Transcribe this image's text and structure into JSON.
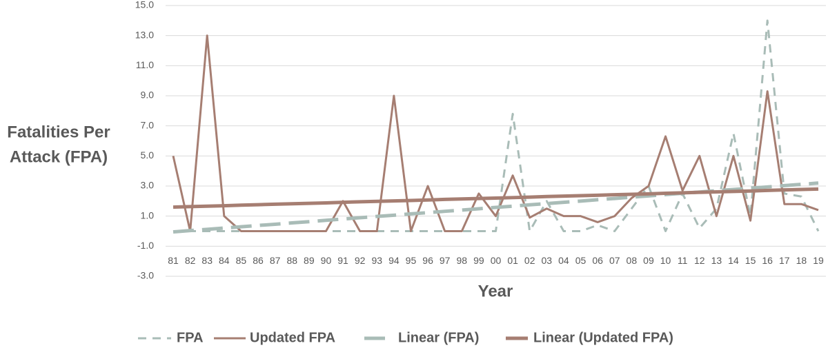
{
  "chart_data": {
    "type": "line",
    "ylabel": [
      "Fatalities Per",
      "Attack (FPA)"
    ],
    "xlabel": "Year",
    "categories": [
      "81",
      "82",
      "83",
      "84",
      "85",
      "86",
      "87",
      "88",
      "89",
      "90",
      "91",
      "92",
      "93",
      "94",
      "95",
      "96",
      "97",
      "98",
      "99",
      "00",
      "01",
      "02",
      "03",
      "04",
      "05",
      "06",
      "07",
      "08",
      "09",
      "10",
      "11",
      "12",
      "13",
      "14",
      "15",
      "16",
      "17",
      "18",
      "19"
    ],
    "ylim": [
      -3,
      15
    ],
    "yticks": [
      {
        "value": -3,
        "label": "-3.0"
      },
      {
        "value": -1,
        "label": "-1.0"
      },
      {
        "value": 1,
        "label": "1.0"
      },
      {
        "value": 3,
        "label": "3.0"
      },
      {
        "value": 5,
        "label": "5.0"
      },
      {
        "value": 7,
        "label": "7.0"
      },
      {
        "value": 9,
        "label": "9.0"
      },
      {
        "value": 11,
        "label": "11.0"
      },
      {
        "value": 13,
        "label": "13.0"
      },
      {
        "value": 15,
        "label": "15.0"
      }
    ],
    "grid": true,
    "legend": "bottom",
    "series": [
      {
        "name": "FPA",
        "color": "#a9bcb7",
        "width": 3,
        "dash": "12 9",
        "values": [
          0,
          0,
          0,
          0,
          0,
          0,
          0,
          0,
          0,
          0,
          0,
          0,
          0,
          0,
          0,
          0,
          0,
          0,
          0,
          0,
          7.8,
          0,
          2,
          0,
          0,
          0.4,
          0,
          1.5,
          3,
          0,
          2.5,
          0.2,
          1.5,
          6.5,
          1,
          14,
          2.5,
          2.3,
          0
        ]
      },
      {
        "name": "Updated FPA",
        "color": "#a67e72",
        "width": 3,
        "dash": "",
        "values": [
          5,
          0,
          13,
          1,
          0,
          0,
          0,
          0,
          0,
          0,
          2,
          0,
          0,
          9,
          0,
          3,
          0,
          0,
          2.5,
          1,
          3.7,
          0.9,
          1.5,
          1,
          1,
          0.6,
          1,
          2.2,
          3,
          6.3,
          2.7,
          5,
          1,
          5,
          0.7,
          9.3,
          1.8,
          1.8,
          1.4
        ]
      },
      {
        "name": "Linear (FPA)",
        "color": "#a9bcb7",
        "width": 5,
        "dash": "30 12",
        "values": [
          -0.05,
          0.04,
          0.12,
          0.21,
          0.29,
          0.38,
          0.46,
          0.55,
          0.63,
          0.72,
          0.81,
          0.89,
          0.98,
          1.06,
          1.15,
          1.23,
          1.32,
          1.4,
          1.49,
          1.58,
          1.66,
          1.75,
          1.83,
          1.92,
          2,
          2.09,
          2.17,
          2.26,
          2.34,
          2.43,
          2.52,
          2.6,
          2.69,
          2.77,
          2.86,
          2.94,
          3.03,
          3.11,
          3.2
        ]
      },
      {
        "name": "Linear (Updated FPA)",
        "color": "#a67e72",
        "width": 5,
        "dash": "",
        "values": [
          1.6,
          1.63,
          1.66,
          1.69,
          1.73,
          1.76,
          1.79,
          1.82,
          1.85,
          1.88,
          1.92,
          1.95,
          1.98,
          2.01,
          2.04,
          2.07,
          2.11,
          2.14,
          2.17,
          2.2,
          2.23,
          2.26,
          2.3,
          2.33,
          2.36,
          2.39,
          2.42,
          2.45,
          2.48,
          2.52,
          2.55,
          2.58,
          2.61,
          2.64,
          2.67,
          2.71,
          2.74,
          2.77,
          2.8
        ]
      }
    ]
  }
}
